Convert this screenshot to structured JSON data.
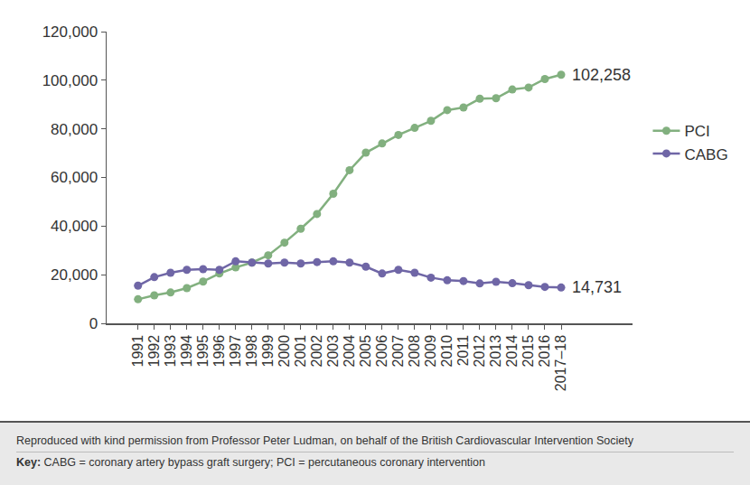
{
  "chart_data": {
    "type": "line",
    "categories": [
      "1991",
      "1992",
      "1993",
      "1994",
      "1995",
      "1996",
      "1997",
      "1998",
      "1999",
      "2000",
      "2001",
      "2002",
      "2003",
      "2004",
      "2005",
      "2006",
      "2007",
      "2008",
      "2009",
      "2010",
      "2011",
      "2012",
      "2013",
      "2014",
      "2015",
      "2016",
      "2017–18"
    ],
    "series": [
      {
        "name": "PCI",
        "color": "#82b07f",
        "marker": "circle",
        "values": [
          9900,
          11500,
          12700,
          14500,
          17200,
          20500,
          23000,
          25000,
          28000,
          33200,
          38900,
          45000,
          53300,
          63000,
          70200,
          74000,
          77500,
          80400,
          83300,
          87700,
          88800,
          92400,
          92600,
          96200,
          97000,
          100500,
          102258
        ]
      },
      {
        "name": "CABG",
        "color": "#6f66a6",
        "marker": "circle",
        "values": [
          15500,
          19000,
          20800,
          22000,
          22300,
          22000,
          25500,
          25000,
          24600,
          25000,
          24600,
          25200,
          25500,
          25000,
          23300,
          20500,
          22000,
          20800,
          18800,
          17700,
          17400,
          16400,
          17100,
          16500,
          15700,
          15000,
          14731
        ]
      }
    ],
    "ylim": [
      0,
      120000
    ],
    "yticks": [
      0,
      {
        "value": 20000,
        "label": "20,000"
      },
      {
        "value": 40000,
        "label": "40,000"
      },
      {
        "value": 60000,
        "label": "60,000"
      },
      {
        "value": 80000,
        "label": "80,000"
      },
      {
        "value": 100000,
        "label": "100,000"
      },
      {
        "value": 120000,
        "label": "120,000"
      }
    ],
    "grid": false,
    "legend": "right",
    "annotations": [
      {
        "text": "102,258",
        "x": "2017–18",
        "y": 102258
      },
      {
        "text": "14,731",
        "x": "2017–18",
        "y": 14731
      }
    ]
  },
  "footer": {
    "source": "Reproduced with kind permission from Professor Peter Ludman, on behalf of the British Cardiovascular Intervention Society",
    "key_label": "Key:",
    "key_text": "CABG = coronary artery bypass graft surgery; PCI = percutaneous coronary intervention"
  }
}
